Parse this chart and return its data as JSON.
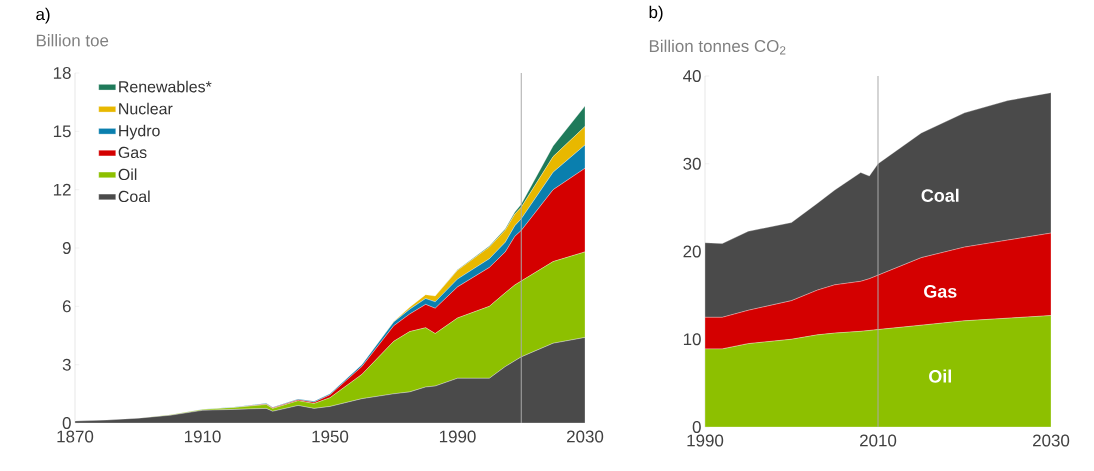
{
  "chart_data": [
    {
      "type": "area",
      "title": "a)",
      "ylabel": "Billion toe",
      "stacked": true,
      "legend": "top left",
      "x": [
        1870,
        1880,
        1890,
        1900,
        1910,
        1920,
        1930,
        1932,
        1940,
        1945,
        1950,
        1960,
        1970,
        1975,
        1980,
        1983,
        1990,
        2000,
        2005,
        2008,
        2010,
        2020,
        2030
      ],
      "series": [
        {
          "name": "Coal",
          "color": "#4a4a4a",
          "values": [
            0.1,
            0.15,
            0.25,
            0.4,
            0.65,
            0.7,
            0.75,
            0.6,
            0.9,
            0.75,
            0.85,
            1.25,
            1.5,
            1.6,
            1.85,
            1.9,
            2.3,
            2.3,
            2.9,
            3.2,
            3.4,
            4.1,
            4.4
          ]
        },
        {
          "name": "Oil",
          "color": "#8dc000",
          "values": [
            0,
            0,
            0,
            0.02,
            0.05,
            0.1,
            0.2,
            0.15,
            0.25,
            0.25,
            0.45,
            1.25,
            2.7,
            3.1,
            3.05,
            2.7,
            3.1,
            3.7,
            3.8,
            3.9,
            3.9,
            4.2,
            4.4
          ]
        },
        {
          "name": "Gas",
          "color": "#d40000",
          "values": [
            0,
            0,
            0,
            0,
            0,
            0,
            0.03,
            0.03,
            0.05,
            0.07,
            0.15,
            0.4,
            0.8,
            0.9,
            1.2,
            1.3,
            1.6,
            2.0,
            2.1,
            2.5,
            2.6,
            3.7,
            4.3
          ]
        },
        {
          "name": "Hydro",
          "color": "#0a7fae",
          "values": [
            0,
            0,
            0,
            0,
            0.01,
            0.02,
            0.03,
            0.03,
            0.04,
            0.05,
            0.06,
            0.1,
            0.2,
            0.25,
            0.3,
            0.33,
            0.4,
            0.45,
            0.5,
            0.55,
            0.6,
            0.9,
            1.2
          ]
        },
        {
          "name": "Nuclear",
          "color": "#e8b800",
          "values": [
            0,
            0,
            0,
            0,
            0,
            0,
            0,
            0,
            0,
            0,
            0,
            0,
            0.02,
            0.1,
            0.2,
            0.3,
            0.45,
            0.6,
            0.62,
            0.6,
            0.6,
            0.8,
            0.95
          ]
        },
        {
          "name": "Renewables*",
          "color": "#1f7a5a",
          "values": [
            0,
            0,
            0,
            0,
            0,
            0,
            0,
            0,
            0,
            0,
            0,
            0,
            0,
            0,
            0,
            0,
            0.03,
            0.05,
            0.07,
            0.1,
            0.15,
            0.55,
            1.05
          ]
        }
      ],
      "xlim": [
        1870,
        2030
      ],
      "xticks": [
        1870,
        1910,
        1950,
        1990,
        2030
      ],
      "ylim": [
        0,
        18
      ],
      "yticks": [
        0,
        3,
        6,
        9,
        12,
        15,
        18
      ],
      "ref_lines": [
        {
          "axis": "x",
          "value": 2010,
          "color": "#aaaaaa"
        }
      ]
    },
    {
      "type": "area",
      "title": "b)",
      "ylabel": "Billion tonnes CO$_{2}$",
      "stacked": true,
      "legend": false,
      "x": [
        1990,
        1992,
        1995,
        2000,
        2003,
        2005,
        2008,
        2009,
        2010,
        2015,
        2020,
        2025,
        2030
      ],
      "series": [
        {
          "name": "Oil",
          "color": "#8dc000",
          "values": [
            8.9,
            8.9,
            9.5,
            10.0,
            10.5,
            10.7,
            10.9,
            11.0,
            11.1,
            11.6,
            12.1,
            12.4,
            12.7
          ]
        },
        {
          "name": "Gas",
          "color": "#d40000",
          "values": [
            3.6,
            3.6,
            3.8,
            4.4,
            5.1,
            5.5,
            5.7,
            5.9,
            6.2,
            7.7,
            8.4,
            8.9,
            9.4
          ]
        },
        {
          "name": "Coal",
          "color": "#4a4a4a",
          "values": [
            8.5,
            8.4,
            9.0,
            8.9,
            9.9,
            10.8,
            12.4,
            11.7,
            12.7,
            14.2,
            15.3,
            15.9,
            16.0
          ]
        }
      ],
      "xlim": [
        1990,
        2030
      ],
      "xticks": [
        1990,
        2010,
        2030
      ],
      "ylim": [
        0,
        40
      ],
      "yticks": [
        0,
        10,
        20,
        30,
        40
      ],
      "ref_lines": [
        {
          "axis": "x",
          "value": 2010,
          "color": "#aaaaaa"
        }
      ]
    }
  ]
}
